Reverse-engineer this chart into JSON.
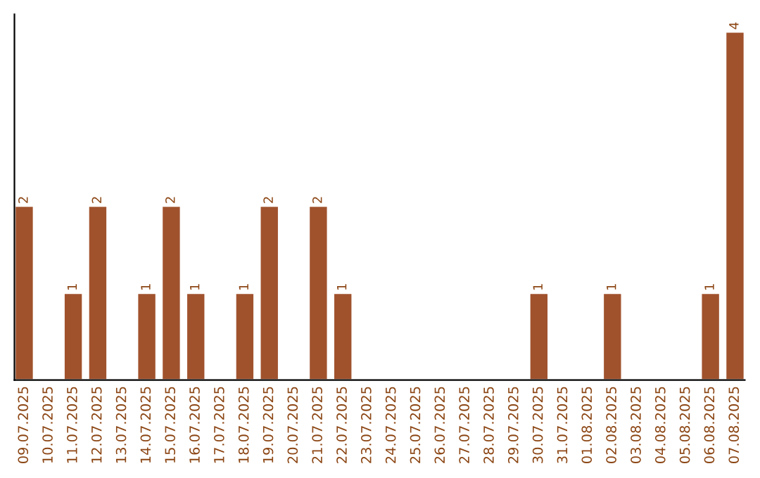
{
  "chart_data": {
    "type": "bar",
    "categories": [
      "09.07.2025",
      "10.07.2025",
      "11.07.2025",
      "12.07.2025",
      "13.07.2025",
      "14.07.2025",
      "15.07.2025",
      "16.07.2025",
      "17.07.2025",
      "18.07.2025",
      "19.07.2025",
      "20.07.2025",
      "21.07.2025",
      "22.07.2025",
      "23.07.2025",
      "24.07.2025",
      "25.07.2025",
      "26.07.2025",
      "27.07.2025",
      "28.07.2025",
      "29.07.2025",
      "30.07.2025",
      "31.07.2025",
      "01.08.2025",
      "02.08.2025",
      "03.08.2025",
      "04.08.2025",
      "05.08.2025",
      "06.08.2025",
      "07.08.2025"
    ],
    "values": [
      2,
      null,
      1,
      2,
      null,
      1,
      2,
      1,
      null,
      1,
      2,
      null,
      2,
      1,
      null,
      null,
      null,
      null,
      null,
      null,
      null,
      1,
      null,
      null,
      1,
      null,
      null,
      null,
      1,
      4
    ],
    "value_labels": [
      "2",
      null,
      "1",
      "2",
      null,
      "1",
      "2",
      "1",
      null,
      "1",
      "2",
      null,
      "2",
      "1",
      null,
      null,
      null,
      null,
      null,
      null,
      null,
      "1",
      null,
      null,
      "1",
      null,
      null,
      null,
      "1",
      "4"
    ],
    "color": "#a0522d",
    "tick_labels": "x",
    "grid": false,
    "legend": false
  }
}
